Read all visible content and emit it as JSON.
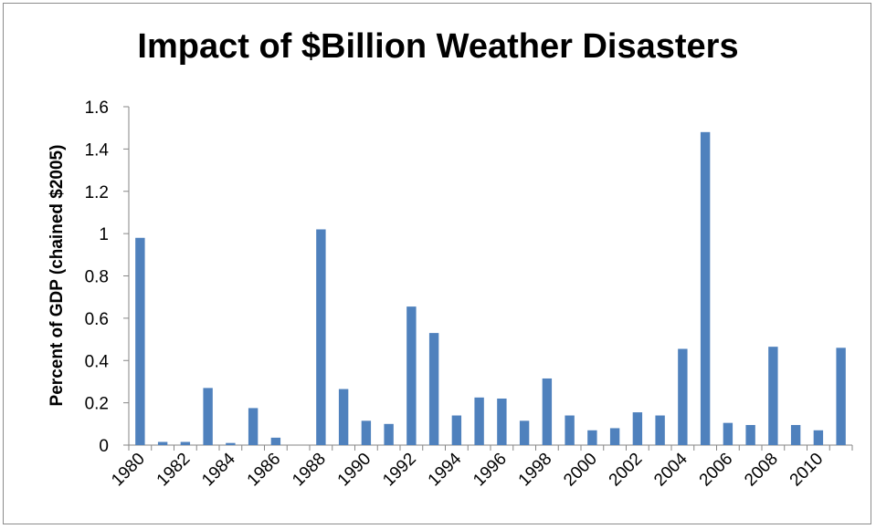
{
  "chart_data": {
    "type": "bar",
    "title": "Impact of $Billion Weather Disasters",
    "xlabel": "",
    "ylabel": "Percent of GDP (chained $2005)",
    "ylim": [
      0,
      1.6
    ],
    "yticks": [
      "0",
      "0.2",
      "0.4",
      "0.6",
      "0.8",
      "1",
      "1.2",
      "1.4",
      "1.6"
    ],
    "categories": [
      "1980",
      "1981",
      "1982",
      "1983",
      "1984",
      "1985",
      "1986",
      "1987",
      "1988",
      "1989",
      "1990",
      "1991",
      "1992",
      "1993",
      "1994",
      "1995",
      "1996",
      "1997",
      "1998",
      "1999",
      "2000",
      "2001",
      "2002",
      "2003",
      "2004",
      "2005",
      "2006",
      "2007",
      "2008",
      "2009",
      "2010",
      "2011"
    ],
    "xtick_labels": [
      "1980",
      "1982",
      "1984",
      "1986",
      "1988",
      "1990",
      "1992",
      "1994",
      "1996",
      "1998",
      "2000",
      "2002",
      "2004",
      "2006",
      "2008",
      "2010"
    ],
    "values": [
      0.98,
      0.015,
      0.015,
      0.27,
      0.01,
      0.175,
      0.035,
      0,
      1.02,
      0.265,
      0.115,
      0.1,
      0.655,
      0.53,
      0.14,
      0.225,
      0.22,
      0.115,
      0.315,
      0.14,
      0.07,
      0.08,
      0.155,
      0.14,
      0.455,
      1.48,
      0.105,
      0.095,
      0.465,
      0.095,
      0.07,
      0.46
    ],
    "bar_color": "#4f81bd",
    "grid": false,
    "legend": "none"
  }
}
